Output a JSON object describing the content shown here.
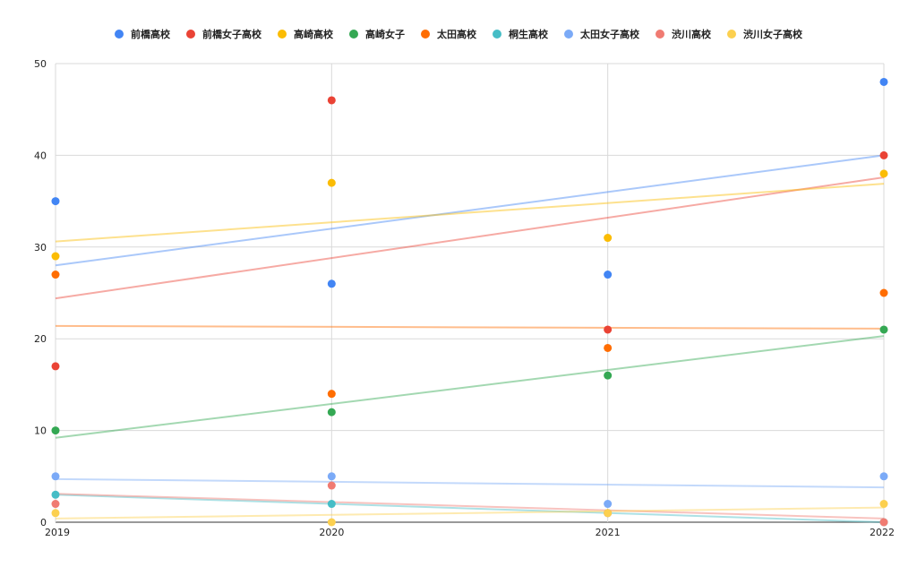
{
  "chart_data": {
    "type": "scatter",
    "title": "",
    "xlabel": "",
    "ylabel": "",
    "x": [
      2019,
      2020,
      2021,
      2022
    ],
    "x_tick_labels": [
      "2019",
      "2020",
      "2021",
      "2022"
    ],
    "ylim": [
      0,
      50
    ],
    "y_ticks": [
      0,
      10,
      20,
      30,
      40,
      50
    ],
    "grid": true,
    "legend_position": "top",
    "trendlines": true,
    "series": [
      {
        "name": "前橋高校",
        "color": "#4285f4",
        "values": [
          35,
          26,
          27,
          48
        ]
      },
      {
        "name": "前橋女子高校",
        "color": "#ea4335",
        "values": [
          17,
          46,
          21,
          40
        ]
      },
      {
        "name": "高崎高校",
        "color": "#fbbc04",
        "values": [
          29,
          37,
          31,
          38
        ]
      },
      {
        "name": "高崎女子",
        "color": "#34a853",
        "values": [
          10,
          12,
          16,
          21
        ]
      },
      {
        "name": "太田高校",
        "color": "#ff6d01",
        "values": [
          27,
          14,
          19,
          25
        ]
      },
      {
        "name": "桐生高校",
        "color": "#46bdc6",
        "values": [
          3,
          2,
          1,
          0
        ]
      },
      {
        "name": "太田女子高校",
        "color": "#7baaf7",
        "values": [
          5,
          5,
          2,
          5
        ]
      },
      {
        "name": "渋川高校",
        "color": "#f07b72",
        "values": [
          2,
          4,
          1,
          0
        ]
      },
      {
        "name": "渋川女子高校",
        "color": "#fcd04f",
        "values": [
          1,
          0,
          1,
          2
        ]
      }
    ]
  }
}
